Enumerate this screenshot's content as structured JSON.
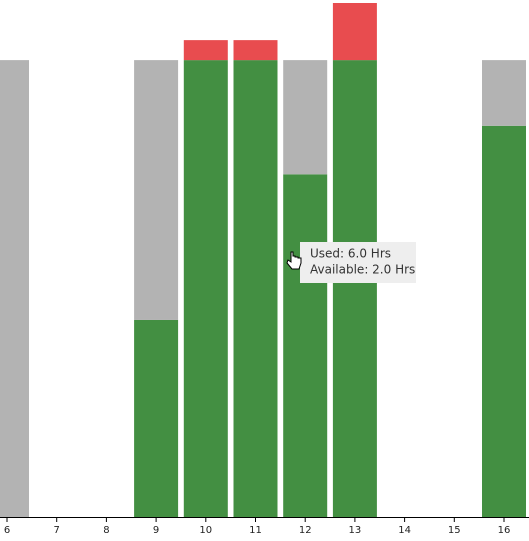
{
  "chart_data": {
    "type": "stacked-bar",
    "categories": [
      "6",
      "7",
      "8",
      "9",
      "10",
      "11",
      "12",
      "13",
      "14",
      "15",
      "16"
    ],
    "series": [
      {
        "color": "#438f42",
        "values": [
          0,
          0,
          0,
          3.45,
          8,
          8,
          6,
          8,
          0,
          0,
          6.85
        ]
      },
      {
        "color": "#b3b3b3",
        "values": [
          8,
          0,
          0,
          4.55,
          0,
          0,
          2,
          0,
          0,
          0,
          1.15
        ]
      },
      {
        "color": "#e84c4f",
        "values": [
          0,
          0,
          0,
          0,
          0.35,
          0.35,
          0,
          1,
          0,
          0,
          0
        ]
      }
    ],
    "ylim": [
      0,
      9
    ],
    "tooltip": {
      "lines": [
        "Used: 6.0 Hrs",
        "Available: 2.0 Hrs"
      ]
    }
  }
}
